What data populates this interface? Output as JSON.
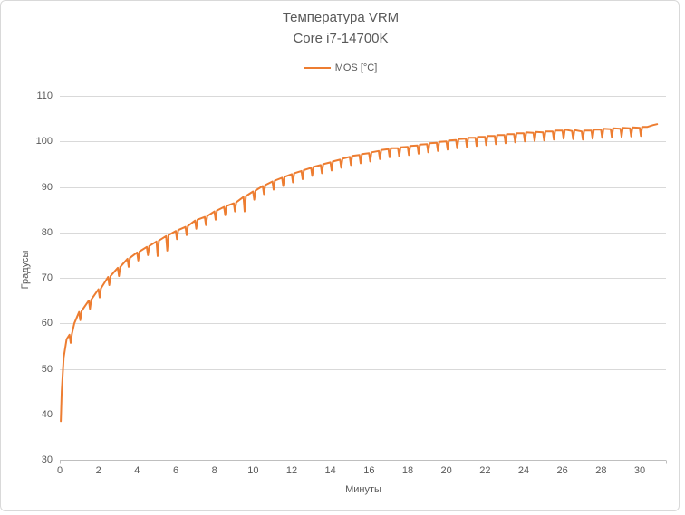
{
  "window": {
    "background": "#FFFFFF",
    "border_color": "#D9D9D9"
  },
  "chart_data": {
    "type": "line",
    "title": "Температура VRM",
    "subtitle": "Core i7-14700K",
    "xlabel": "Минуты",
    "ylabel": "Градусы",
    "legend_position": "top-center",
    "xlim": [
      0,
      31.3
    ],
    "ylim": [
      30,
      110
    ],
    "x_ticks": [
      0,
      2,
      4,
      6,
      8,
      10,
      12,
      14,
      16,
      18,
      20,
      22,
      24,
      26,
      28,
      30
    ],
    "y_ticks": [
      30,
      40,
      50,
      60,
      70,
      80,
      90,
      100,
      110
    ],
    "grid": "horizontal",
    "gridline_color": "#D9D9D9",
    "axis_line_color": "#BFBFBF",
    "text_color": "#595959",
    "series": [
      {
        "name": "MOS [°C]",
        "color": "#ED7D31",
        "x": [
          0.05,
          0.1,
          0.2,
          0.35,
          0.5,
          0.75,
          1,
          1.5,
          2,
          2.5,
          3,
          3.5,
          4,
          4.5,
          5,
          5.5,
          6,
          6.5,
          7,
          7.5,
          8,
          8.5,
          9,
          9.5,
          10,
          10.5,
          11,
          11.5,
          12,
          12.5,
          13,
          13.5,
          14,
          14.5,
          15,
          15.5,
          16,
          16.5,
          17,
          17.5,
          18,
          18.5,
          19,
          19.5,
          20,
          20.5,
          21,
          21.5,
          22,
          22.5,
          23,
          23.5,
          24,
          24.5,
          25,
          25.5,
          26,
          26.5,
          27,
          27.5,
          28,
          28.5,
          29,
          29.5,
          30,
          30.4,
          30.7,
          30.9
        ],
        "y": [
          38.5,
          45,
          52.5,
          56.5,
          57.5,
          60,
          62.5,
          65,
          67.5,
          70.2,
          72.2,
          74.2,
          75.6,
          76.8,
          78,
          79.2,
          80.3,
          81.2,
          82.6,
          83.4,
          84.6,
          85.6,
          86.4,
          87.8,
          89,
          90.2,
          91.2,
          92,
          92.8,
          93.5,
          94.2,
          94.8,
          95.4,
          96,
          96.6,
          97,
          97.4,
          97.9,
          98.3,
          98.5,
          98.8,
          99.1,
          99.4,
          99.7,
          100,
          100.3,
          100.6,
          100.8,
          101,
          101.2,
          101.4,
          101.6,
          101.8,
          101.9,
          102,
          102.2,
          102.4,
          102.3,
          102.2,
          102.4,
          102.6,
          102.7,
          102.8,
          102.9,
          103,
          103.2,
          103.6,
          103.8
        ],
        "sawtooth": {
          "period_min": 0.5,
          "typical_dip_degC": 1.8,
          "deep_dip_degC": 3.2,
          "deep_dips_at_min": [
            5.3,
            9.6
          ]
        }
      }
    ]
  }
}
